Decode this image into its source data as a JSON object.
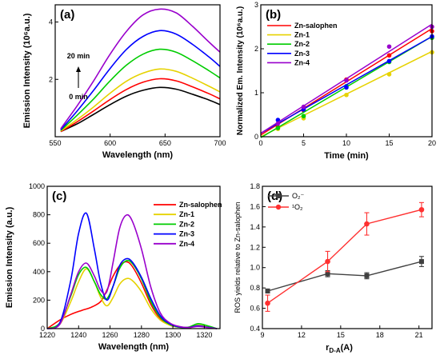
{
  "chart_data": [
    {
      "panel": "(a)",
      "type": "line",
      "xlabel": "Wavelength (nm)",
      "ylabel": "Emission Intensity (10⁶a.u.)",
      "xlim": [
        550,
        700
      ],
      "ylim": [
        0,
        4.6
      ],
      "xticks": [
        550,
        600,
        650,
        700
      ],
      "yticks": [
        2,
        4
      ],
      "annotation_top": "20 min",
      "annotation_bottom": "0 min",
      "series": [
        {
          "color": "#000000",
          "x": [
            555,
            570,
            585,
            600,
            615,
            630,
            645,
            660,
            675,
            690,
            700
          ],
          "y": [
            0.18,
            0.45,
            0.78,
            1.12,
            1.42,
            1.62,
            1.72,
            1.66,
            1.48,
            1.28,
            1.12
          ]
        },
        {
          "color": "#ff0000",
          "x": [
            555,
            570,
            585,
            600,
            615,
            630,
            645,
            660,
            675,
            690,
            700
          ],
          "y": [
            0.18,
            0.52,
            0.9,
            1.3,
            1.65,
            1.9,
            2.02,
            1.95,
            1.74,
            1.5,
            1.32
          ]
        },
        {
          "color": "#e6d200",
          "x": [
            555,
            570,
            585,
            600,
            615,
            630,
            645,
            660,
            675,
            690,
            700
          ],
          "y": [
            0.2,
            0.6,
            1.04,
            1.52,
            1.94,
            2.22,
            2.36,
            2.28,
            2.04,
            1.76,
            1.56
          ]
        },
        {
          "color": "#00cc00",
          "x": [
            555,
            570,
            585,
            600,
            615,
            630,
            645,
            660,
            675,
            690,
            700
          ],
          "y": [
            0.22,
            0.75,
            1.32,
            1.95,
            2.5,
            2.88,
            3.05,
            2.95,
            2.65,
            2.3,
            2.05
          ]
        },
        {
          "color": "#0000ff",
          "x": [
            555,
            570,
            585,
            600,
            615,
            630,
            645,
            660,
            675,
            690,
            700
          ],
          "y": [
            0.24,
            0.9,
            1.62,
            2.38,
            3.05,
            3.5,
            3.7,
            3.58,
            3.22,
            2.78,
            2.45
          ]
        },
        {
          "color": "#9900cc",
          "x": [
            555,
            570,
            585,
            600,
            615,
            630,
            645,
            660,
            675,
            690,
            700
          ],
          "y": [
            0.28,
            1.08,
            1.95,
            2.88,
            3.68,
            4.25,
            4.45,
            4.32,
            3.85,
            3.3,
            2.95
          ]
        }
      ]
    },
    {
      "panel": "(b)",
      "type": "scatter",
      "xlabel": "Time (min)",
      "ylabel": "Normalized Em. Intensity (10⁶a.u.)",
      "xlim": [
        0,
        20
      ],
      "ylim": [
        0,
        3
      ],
      "xticks": [
        0,
        5,
        10,
        15,
        20
      ],
      "yticks": [
        0,
        1,
        2,
        3
      ],
      "legend": "top-left",
      "series": [
        {
          "name": "Zn-salophen",
          "color": "#ff0000",
          "x": [
            2,
            5,
            10,
            15,
            20
          ],
          "y": [
            0.22,
            0.6,
            1.3,
            1.85,
            2.4
          ],
          "fit": [
            0.04,
            0.121
          ]
        },
        {
          "name": "Zn-1",
          "color": "#e6d200",
          "x": [
            2,
            5,
            10,
            15,
            20
          ],
          "y": [
            0.18,
            0.42,
            0.95,
            1.42,
            1.92
          ],
          "fit": [
            0.0,
            0.097
          ]
        },
        {
          "name": "Zn-2",
          "color": "#00cc00",
          "x": [
            2,
            5,
            10,
            15,
            20
          ],
          "y": [
            0.2,
            0.47,
            1.15,
            1.7,
            2.25
          ],
          "fit": [
            -0.02,
            0.115
          ]
        },
        {
          "name": "Zn-3",
          "color": "#0000ff",
          "x": [
            2,
            5,
            10,
            15,
            20
          ],
          "y": [
            0.38,
            0.62,
            1.12,
            1.72,
            2.28
          ],
          "fit": [
            0.08,
            0.11
          ]
        },
        {
          "name": "Zn-4",
          "color": "#9900cc",
          "x": [
            2,
            5,
            10,
            15,
            20
          ],
          "y": [
            0.3,
            0.68,
            1.28,
            2.05,
            2.5
          ],
          "fit": [
            0.08,
            0.124
          ]
        }
      ]
    },
    {
      "panel": "(c)",
      "type": "line",
      "xlabel": "Wavelength (nm)",
      "ylabel": "Emission Intensity (a.u.)",
      "xlim": [
        1220,
        1330
      ],
      "ylim": [
        0,
        1000
      ],
      "xticks": [
        1220,
        1240,
        1260,
        1280,
        1300,
        1320
      ],
      "yticks": [
        0,
        200,
        400,
        600,
        800,
        1000
      ],
      "legend": "top-right",
      "series": [
        {
          "name": "Zn-salophen",
          "color": "#ff0000",
          "x": [
            1220,
            1228,
            1235,
            1242,
            1248,
            1254,
            1258,
            1262,
            1266,
            1270,
            1274,
            1280,
            1286,
            1292,
            1298,
            1304,
            1310,
            1316,
            1322,
            1328
          ],
          "y": [
            0,
            60,
            100,
            128,
            150,
            190,
            270,
            370,
            440,
            470,
            440,
            320,
            170,
            70,
            25,
            10,
            5,
            20,
            10,
            0
          ]
        },
        {
          "name": "Zn-1",
          "color": "#e6d200",
          "x": [
            1220,
            1228,
            1235,
            1240,
            1245,
            1250,
            1254,
            1258,
            1262,
            1266,
            1270,
            1274,
            1280,
            1286,
            1292,
            1298,
            1304,
            1310,
            1316,
            1322,
            1328
          ],
          "y": [
            0,
            30,
            190,
            330,
            420,
            330,
            220,
            160,
            220,
            310,
            350,
            340,
            260,
            140,
            60,
            25,
            10,
            10,
            25,
            15,
            0
          ]
        },
        {
          "name": "Zn-2",
          "color": "#00cc00",
          "x": [
            1220,
            1228,
            1235,
            1240,
            1245,
            1250,
            1254,
            1258,
            1262,
            1266,
            1270,
            1274,
            1280,
            1286,
            1292,
            1298,
            1304,
            1310,
            1316,
            1322,
            1328
          ],
          "y": [
            0,
            40,
            230,
            380,
            430,
            330,
            240,
            210,
            300,
            420,
            475,
            460,
            350,
            190,
            80,
            30,
            10,
            10,
            35,
            20,
            0
          ]
        },
        {
          "name": "Zn-3",
          "color": "#0000ff",
          "x": [
            1220,
            1228,
            1235,
            1240,
            1245,
            1250,
            1254,
            1258,
            1262,
            1266,
            1270,
            1274,
            1280,
            1286,
            1292,
            1298,
            1304,
            1310,
            1316,
            1322,
            1328
          ],
          "y": [
            0,
            40,
            340,
            670,
            810,
            560,
            320,
            200,
            300,
            440,
            490,
            470,
            360,
            210,
            90,
            35,
            12,
            8,
            20,
            10,
            0
          ]
        },
        {
          "name": "Zn-4",
          "color": "#9900cc",
          "x": [
            1220,
            1228,
            1235,
            1240,
            1245,
            1250,
            1254,
            1258,
            1262,
            1266,
            1270,
            1274,
            1280,
            1286,
            1292,
            1298,
            1304,
            1310,
            1316,
            1322,
            1328
          ],
          "y": [
            0,
            30,
            240,
            400,
            460,
            370,
            270,
            260,
            470,
            700,
            795,
            760,
            560,
            290,
            110,
            40,
            15,
            8,
            15,
            8,
            0
          ]
        }
      ]
    },
    {
      "panel": "(d)",
      "type": "line",
      "xlabel": "r",
      "xlabel_sub": "D-A",
      "xlabel_tail": "(A)",
      "ylabel": "ROS yields relative to Zn-salophen",
      "xlim": [
        9,
        22
      ],
      "ylim": [
        0.4,
        1.8
      ],
      "xticks": [
        9,
        12,
        15,
        18,
        21
      ],
      "yticks": [
        0.4,
        0.6,
        0.8,
        1.0,
        1.2,
        1.4,
        1.6,
        1.8
      ],
      "legend": "top-left",
      "series": [
        {
          "name": "O₂⁻",
          "color": "#404040",
          "marker": "square",
          "x": [
            9.4,
            14,
            17,
            21.2
          ],
          "y": [
            0.77,
            0.94,
            0.92,
            1.06
          ],
          "err": [
            0.02,
            0.03,
            0.03,
            0.05
          ]
        },
        {
          "name": "¹O₂",
          "color": "#ff3030",
          "marker": "circle",
          "x": [
            9.4,
            14,
            17,
            21.2
          ],
          "y": [
            0.65,
            1.06,
            1.43,
            1.57
          ],
          "err": [
            0.08,
            0.1,
            0.11,
            0.07
          ]
        }
      ]
    }
  ]
}
